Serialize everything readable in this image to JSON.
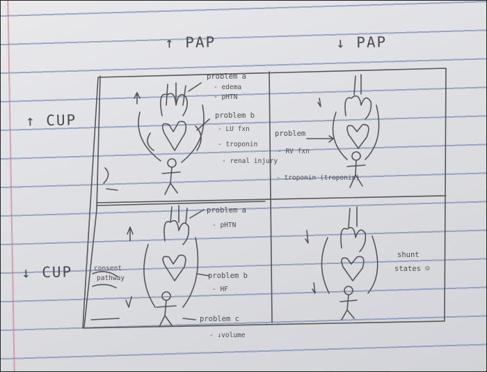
{
  "headings": {
    "col1": "↑ PAP",
    "col2": "↓ PAP",
    "row1": "↑ CUP",
    "row2": "↓ CUP"
  },
  "q1": {
    "problem_a": "problem a",
    "problem_a_notes": [
      "- edema",
      "- pHTN"
    ],
    "problem_b": "problem b",
    "problem_b_notes": [
      "- LU fxn",
      "- troponin",
      "- renal injury"
    ]
  },
  "q2": {
    "problem": "problem",
    "problem_notes": [
      "- RV fxn",
      "- troponin (troponin)"
    ]
  },
  "q3": {
    "problem_a": "problem a",
    "problem_a_notes": [
      "- pHTN"
    ],
    "problem_b": "problem b",
    "problem_b_notes": [
      "- HF"
    ],
    "problem_c": "problem c",
    "problem_c_notes": [
      "- ↓volume"
    ],
    "side_note": [
      "consent",
      "pathway"
    ]
  },
  "q4": {
    "side_note": [
      "shunt",
      "states ☺"
    ]
  }
}
